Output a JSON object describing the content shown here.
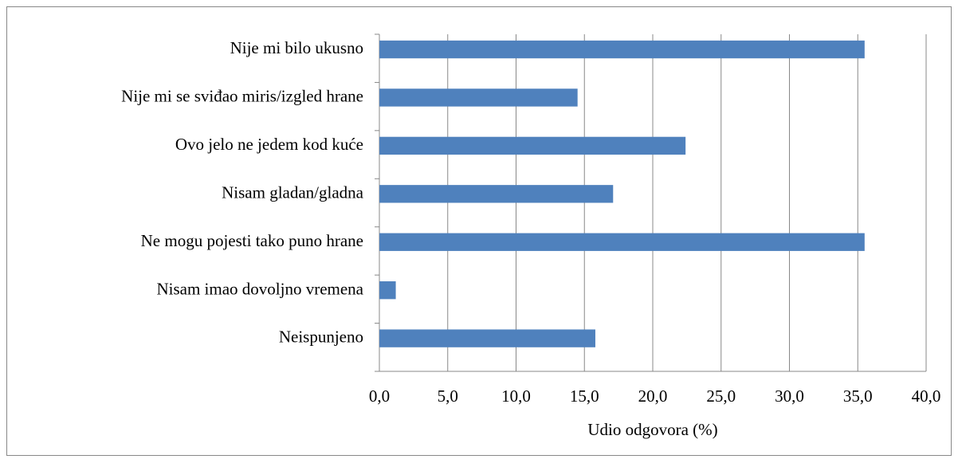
{
  "chart_data": {
    "type": "bar",
    "orientation": "horizontal",
    "categories": [
      "Nije mi bilo ukusno",
      "Nije mi se sviđao miris/izgled hrane",
      "Ovo jelo ne jedem kod kuće",
      "Nisam gladan/gladna",
      "Ne mogu pojesti tako puno hrane",
      "Nisam imao dovoljno vremena",
      "Neispunjeno"
    ],
    "values": [
      35.5,
      14.5,
      22.4,
      17.1,
      35.5,
      1.2,
      15.8
    ],
    "color": "#4f81bd",
    "xlabel": "Udio odgovora (%)",
    "xlim": [
      0,
      40
    ],
    "xticks": [
      {
        "value": 0,
        "label": "0,0"
      },
      {
        "value": 5,
        "label": "5,0"
      },
      {
        "value": 10,
        "label": "10,0"
      },
      {
        "value": 15,
        "label": "15,0"
      },
      {
        "value": 20,
        "label": "20,0"
      },
      {
        "value": 25,
        "label": "25,0"
      },
      {
        "value": 30,
        "label": "30,0"
      },
      {
        "value": 35,
        "label": "35,0"
      },
      {
        "value": 40,
        "label": "40,0"
      }
    ],
    "grid": true
  }
}
